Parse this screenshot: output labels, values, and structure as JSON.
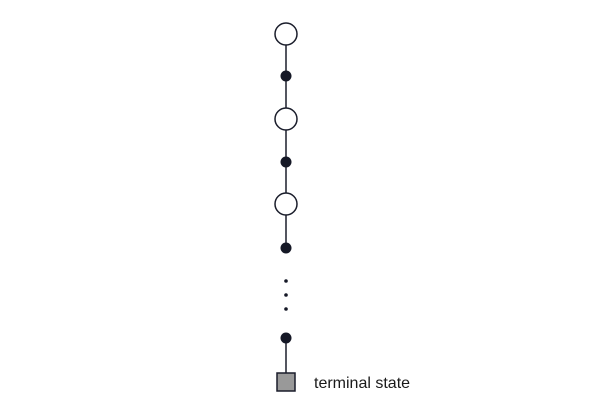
{
  "diagram": {
    "terminal_label": "terminal state",
    "colors": {
      "state_fill": "#ffffff",
      "state_stroke": "#1a1d2b",
      "action_fill": "#151826",
      "edge": "#1a1d2b",
      "terminal_fill": "#999999",
      "terminal_stroke": "#1a1d2b"
    },
    "sequence": [
      "state",
      "action",
      "state",
      "action",
      "state",
      "action",
      "ellipsis",
      "action",
      "terminal"
    ]
  }
}
